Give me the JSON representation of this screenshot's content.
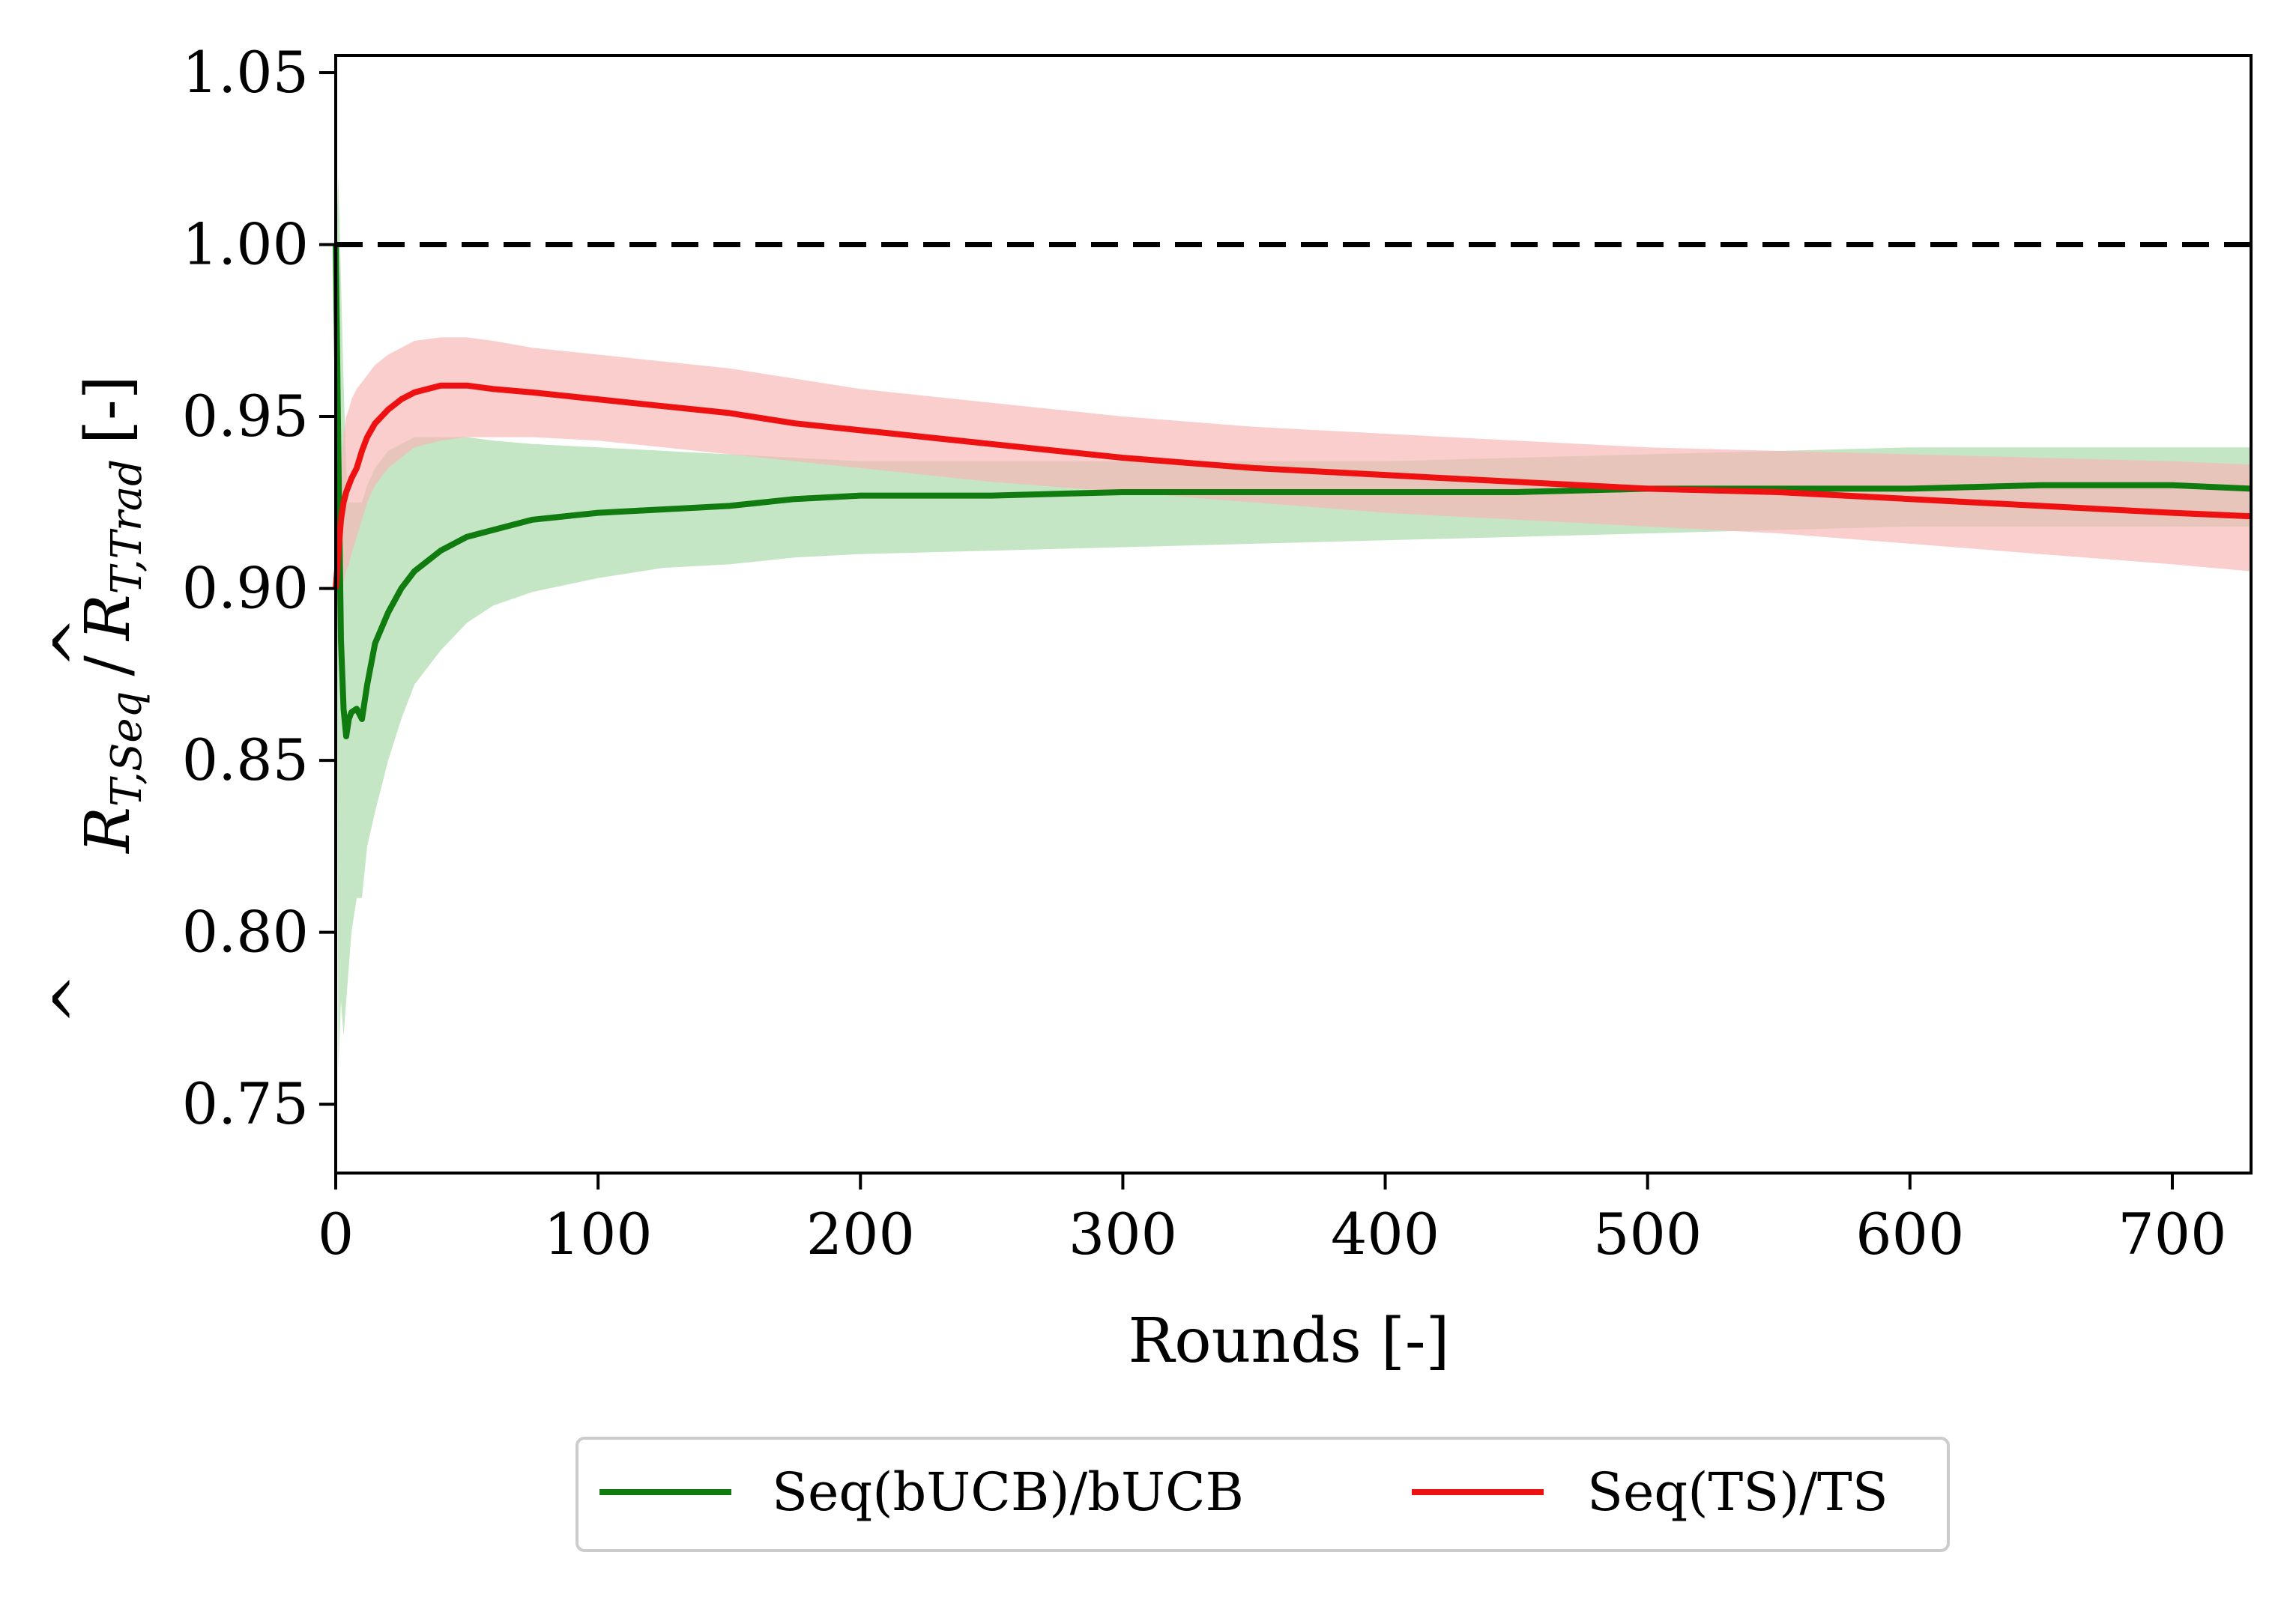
{
  "chart_data": {
    "type": "line",
    "title": "",
    "xlabel": "Rounds [-]",
    "ylabel_parts": {
      "num_main": "R",
      "num_sub": "T,Seq",
      "separator": "/",
      "den_main": "R",
      "den_sub": "T,Trad",
      "unit": "[-]"
    },
    "xlim": [
      0,
      730
    ],
    "ylim": [
      0.73,
      1.055
    ],
    "xticks": [
      0,
      100,
      200,
      300,
      400,
      500,
      600,
      700
    ],
    "xtick_labels": [
      "0",
      "100",
      "200",
      "300",
      "400",
      "500",
      "600",
      "700"
    ],
    "yticks": [
      0.75,
      0.8,
      0.85,
      0.9,
      0.95,
      1.0,
      1.05
    ],
    "ytick_labels": [
      "0.75",
      "0.80",
      "0.85",
      "0.90",
      "0.95",
      "1.00",
      "1.05"
    ],
    "reference_line": {
      "y": 1.0,
      "style": "dashed",
      "color": "#000000"
    },
    "legend_position": "below",
    "series": [
      {
        "name": "Seq(bUCB)/bUCB",
        "color": "#107c10",
        "band_color": "#a6d8a6",
        "x": [
          0,
          1,
          2,
          3,
          4,
          5,
          6,
          8,
          10,
          12,
          15,
          20,
          25,
          30,
          40,
          50,
          60,
          75,
          100,
          125,
          150,
          175,
          200,
          250,
          300,
          350,
          400,
          450,
          500,
          550,
          600,
          650,
          700,
          730
        ],
        "values": [
          1.0,
          0.94,
          0.885,
          0.865,
          0.857,
          0.862,
          0.864,
          0.865,
          0.862,
          0.872,
          0.884,
          0.893,
          0.9,
          0.905,
          0.911,
          0.915,
          0.917,
          0.92,
          0.922,
          0.923,
          0.924,
          0.926,
          0.927,
          0.927,
          0.928,
          0.928,
          0.928,
          0.928,
          0.929,
          0.929,
          0.929,
          0.93,
          0.93,
          0.929
        ],
        "lower": [
          1.0,
          0.76,
          0.78,
          0.77,
          0.78,
          0.79,
          0.8,
          0.81,
          0.81,
          0.825,
          0.835,
          0.85,
          0.862,
          0.872,
          0.882,
          0.89,
          0.895,
          0.899,
          0.903,
          0.906,
          0.907,
          0.909,
          0.91,
          0.911,
          0.912,
          0.913,
          0.914,
          0.915,
          0.916,
          0.917,
          0.918,
          0.918,
          0.918,
          0.918
        ],
        "upper": [
          1.0,
          1.02,
          0.99,
          0.96,
          0.935,
          0.925,
          0.925,
          0.925,
          0.925,
          0.93,
          0.935,
          0.94,
          0.942,
          0.944,
          0.944,
          0.944,
          0.943,
          0.942,
          0.941,
          0.94,
          0.939,
          0.938,
          0.937,
          0.937,
          0.937,
          0.937,
          0.937,
          0.938,
          0.939,
          0.94,
          0.941,
          0.941,
          0.941,
          0.941
        ]
      },
      {
        "name": "Seq(TS)/TS",
        "color": "#ee1111",
        "band_color": "#f9b3b3",
        "x": [
          0,
          1,
          2,
          3,
          4,
          5,
          6,
          8,
          10,
          12,
          15,
          20,
          25,
          30,
          40,
          50,
          60,
          75,
          100,
          125,
          150,
          175,
          200,
          250,
          300,
          350,
          400,
          450,
          500,
          550,
          600,
          650,
          700,
          730
        ],
        "values": [
          0.9,
          0.91,
          0.92,
          0.925,
          0.928,
          0.93,
          0.932,
          0.935,
          0.94,
          0.944,
          0.948,
          0.952,
          0.955,
          0.957,
          0.959,
          0.959,
          0.958,
          0.957,
          0.955,
          0.953,
          0.951,
          0.948,
          0.946,
          0.942,
          0.938,
          0.935,
          0.933,
          0.931,
          0.929,
          0.928,
          0.926,
          0.924,
          0.922,
          0.921
        ],
        "lower": [
          0.9,
          0.895,
          0.898,
          0.902,
          0.905,
          0.907,
          0.91,
          0.915,
          0.92,
          0.925,
          0.93,
          0.935,
          0.938,
          0.941,
          0.943,
          0.944,
          0.944,
          0.944,
          0.943,
          0.941,
          0.939,
          0.937,
          0.935,
          0.931,
          0.928,
          0.925,
          0.922,
          0.92,
          0.918,
          0.916,
          0.913,
          0.91,
          0.907,
          0.905
        ],
        "upper": [
          0.92,
          0.925,
          0.935,
          0.945,
          0.95,
          0.952,
          0.955,
          0.958,
          0.96,
          0.962,
          0.965,
          0.968,
          0.97,
          0.972,
          0.973,
          0.973,
          0.972,
          0.97,
          0.968,
          0.966,
          0.964,
          0.961,
          0.958,
          0.954,
          0.95,
          0.947,
          0.945,
          0.943,
          0.941,
          0.94,
          0.939,
          0.938,
          0.937,
          0.936
        ]
      }
    ]
  }
}
